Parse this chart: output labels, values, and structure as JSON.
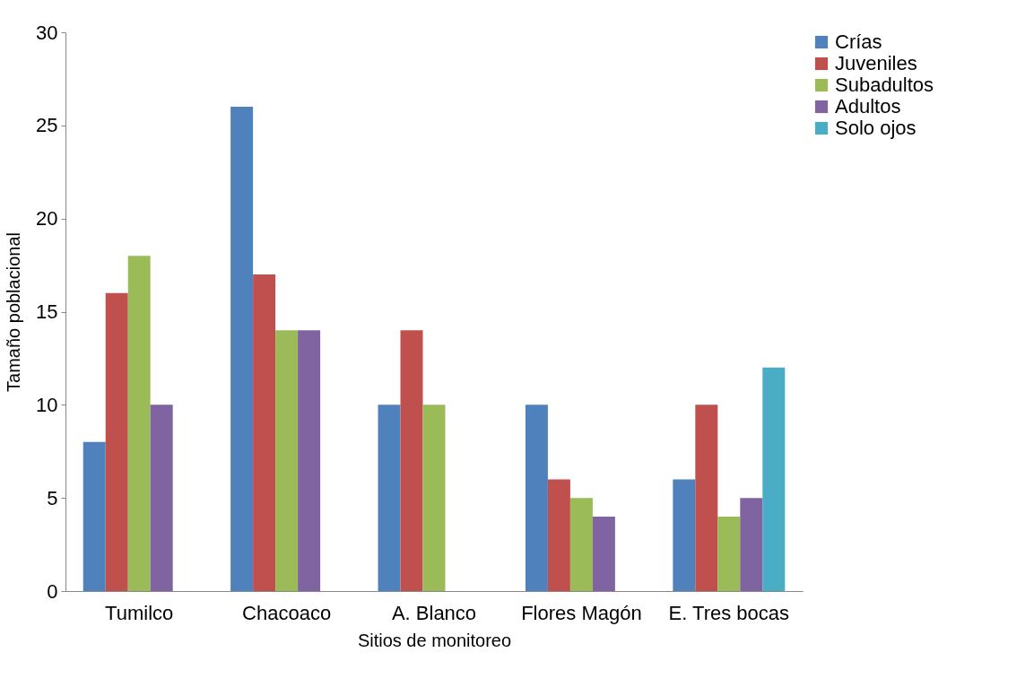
{
  "chart_data": {
    "type": "bar",
    "xlabel": "Sitios de monitoreo",
    "ylabel": "Tamaño poblacional",
    "categories": [
      "Tumilco",
      "Chacoaco",
      "A. Blanco",
      "Flores Magón",
      "E. Tres bocas"
    ],
    "series": [
      {
        "name": "Crías",
        "color": "#4f81bd",
        "values": [
          8,
          26,
          10,
          10,
          6
        ]
      },
      {
        "name": "Juveniles",
        "color": "#c0504d",
        "values": [
          16,
          17,
          14,
          6,
          10
        ]
      },
      {
        "name": "Subadultos",
        "color": "#9bbb59",
        "values": [
          18,
          14,
          10,
          5,
          4
        ]
      },
      {
        "name": "Adultos",
        "color": "#8064a2",
        "values": [
          10,
          14,
          null,
          4,
          5
        ]
      },
      {
        "name": "Solo ojos",
        "color": "#4bacc6",
        "values": [
          null,
          null,
          null,
          null,
          12
        ]
      }
    ],
    "ylim": [
      0,
      30
    ],
    "yticks": [
      0,
      5,
      10,
      15,
      20,
      25,
      30
    ],
    "grid": false,
    "legend": "right"
  }
}
